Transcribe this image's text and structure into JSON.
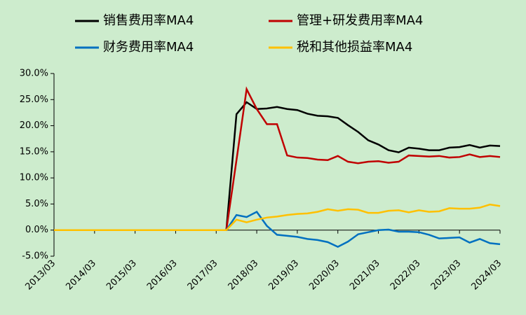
{
  "chart_data": {
    "type": "line",
    "categories": [
      "2013/03",
      null,
      null,
      null,
      "2014/03",
      null,
      null,
      null,
      "2015/03",
      null,
      null,
      null,
      "2016/03",
      null,
      null,
      null,
      "2017/03",
      null,
      null,
      null,
      "2018/03",
      null,
      null,
      null,
      "2019/03",
      null,
      null,
      null,
      "2020/03",
      null,
      null,
      null,
      "2021/03",
      null,
      null,
      null,
      "2022/03",
      null,
      null,
      null,
      "2023/03",
      null,
      null,
      null,
      "2024/03"
    ],
    "series": [
      {
        "name": "销售费用率MA4",
        "color": "#000000",
        "values": [
          0,
          0,
          0,
          0,
          0,
          0,
          0,
          0,
          0,
          0,
          0,
          0,
          0,
          0,
          0,
          0,
          0,
          0,
          22.2,
          24.5,
          23.2,
          23.3,
          23.6,
          23.2,
          23.0,
          22.3,
          21.9,
          21.8,
          21.5,
          20.1,
          18.8,
          17.2,
          16.4,
          15.3,
          14.9,
          15.8,
          15.6,
          15.3,
          15.3,
          15.8,
          15.9,
          16.3,
          15.8,
          16.2,
          16.1
        ]
      },
      {
        "name": "管理+研发费用率MA4",
        "color": "#c00000",
        "values": [
          0,
          0,
          0,
          0,
          0,
          0,
          0,
          0,
          0,
          0,
          0,
          0,
          0,
          0,
          0,
          0,
          0,
          0,
          13.4,
          27.0,
          23.2,
          20.3,
          20.3,
          14.3,
          13.9,
          13.8,
          13.5,
          13.4,
          14.2,
          13.1,
          12.8,
          13.1,
          13.2,
          12.9,
          13.1,
          14.3,
          14.2,
          14.1,
          14.2,
          13.9,
          14.0,
          14.5,
          14.0,
          14.2,
          14.0
        ]
      },
      {
        "name": "财务费用率MA4",
        "color": "#0070c0",
        "values": [
          0,
          0,
          0,
          0,
          0,
          0,
          0,
          0,
          0,
          0,
          0,
          0,
          0,
          0,
          0,
          0,
          0,
          0,
          2.9,
          2.5,
          3.5,
          0.8,
          -0.9,
          -1.1,
          -1.3,
          -1.7,
          -1.9,
          -2.3,
          -3.2,
          -2.2,
          -0.8,
          -0.4,
          0.0,
          0.1,
          -0.3,
          -0.3,
          -0.4,
          -0.9,
          -1.6,
          -1.5,
          -1.4,
          -2.4,
          -1.7,
          -2.5,
          -2.7
        ]
      },
      {
        "name": "税和其他损益率MA4",
        "color": "#ffc000",
        "values": [
          0,
          0,
          0,
          0,
          0,
          0,
          0,
          0,
          0,
          0,
          0,
          0,
          0,
          0,
          0,
          0,
          0,
          0,
          2.0,
          1.5,
          2.0,
          2.4,
          2.6,
          2.9,
          3.1,
          3.2,
          3.5,
          4.0,
          3.7,
          4.0,
          3.9,
          3.3,
          3.3,
          3.7,
          3.8,
          3.4,
          3.8,
          3.5,
          3.6,
          4.2,
          4.1,
          4.1,
          4.3,
          4.9,
          4.6
        ]
      }
    ],
    "ylim": [
      -5,
      30
    ],
    "yticks": [
      {
        "value": -5,
        "label": "-5.0%"
      },
      {
        "value": 0,
        "label": "0.0%"
      },
      {
        "value": 5,
        "label": "5.0%"
      },
      {
        "value": 10,
        "label": "10.0%"
      },
      {
        "value": 15,
        "label": "15.0%"
      },
      {
        "value": 20,
        "label": "20.0%"
      },
      {
        "value": 25,
        "label": "25.0%"
      },
      {
        "value": 30,
        "label": "30.0%"
      }
    ],
    "grid": false,
    "legend": "top"
  }
}
